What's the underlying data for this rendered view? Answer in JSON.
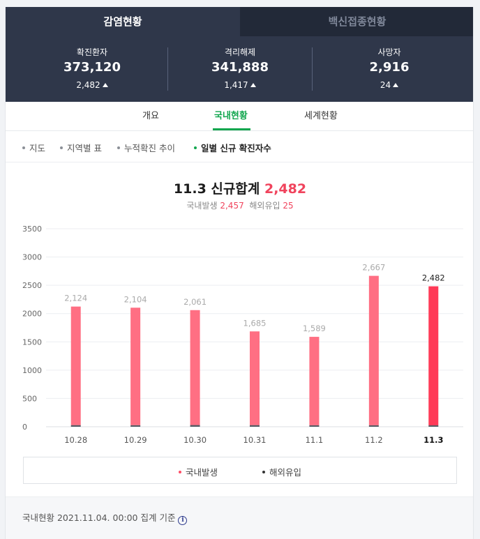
{
  "top_tabs": {
    "active_label": "감염현황",
    "inactive_label": "백신접종현황"
  },
  "stats": [
    {
      "label": "확진환자",
      "value": "373,120",
      "delta": "2,482"
    },
    {
      "label": "격리해제",
      "value": "341,888",
      "delta": "1,417"
    },
    {
      "label": "사망자",
      "value": "2,916",
      "delta": "24"
    }
  ],
  "sub_tabs": [
    "개요",
    "국내현황",
    "세계현황"
  ],
  "active_sub_tab": "국내현황",
  "filters": [
    "지도",
    "지역별 표",
    "누적확진 추이",
    "일별 신규 확진자수"
  ],
  "active_filter": "일별 신규 확진자수",
  "heading": {
    "date": "11.3",
    "label": "신규합계",
    "total": "2,482",
    "domestic_label": "국내발생",
    "domestic_value": "2,457",
    "overseas_label": "해외유입",
    "overseas_value": "25"
  },
  "chart_data": {
    "type": "bar",
    "stacked": true,
    "categories": [
      "10.28",
      "10.29",
      "10.30",
      "10.31",
      "11.1",
      "11.2",
      "11.3"
    ],
    "series": [
      {
        "name": "국내발생",
        "values": [
          2095,
          2076,
          2031,
          1656,
          1563,
          2641,
          2457
        ]
      },
      {
        "name": "해외유입",
        "values": [
          29,
          28,
          30,
          29,
          26,
          26,
          25
        ]
      }
    ],
    "totals": [
      2124,
      2104,
      2061,
      1685,
      1589,
      2667,
      2482
    ],
    "total_labels": [
      "2,124",
      "2,104",
      "2,061",
      "1,685",
      "1,589",
      "2,667",
      "2,482"
    ],
    "y_ticks": [
      0,
      500,
      1000,
      1500,
      2000,
      2500,
      3000,
      3500
    ],
    "ylim": [
      0,
      3500
    ],
    "highlight_category": "11.3",
    "grid": true,
    "legend_position": "bottom",
    "colors": {
      "domestic": "#ff6f83",
      "domestic_highlight": "#ff3a57",
      "overseas": "#555a63"
    }
  },
  "legend": {
    "domestic": "국내발생",
    "overseas": "해외유입",
    "domestic_dot_color": "#ff4d66",
    "overseas_dot_color": "#333333"
  },
  "footer": {
    "text": "국내현황 2021.11.04. 00:00 집계 기준",
    "icon": "info-icon"
  }
}
